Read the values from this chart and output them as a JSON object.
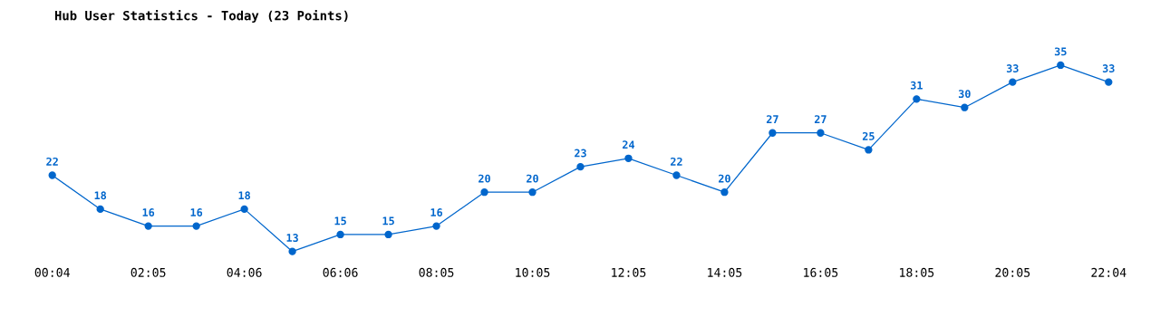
{
  "chart_data": {
    "type": "line",
    "title": "Hub User Statistics - Today (23 Points)",
    "categories": [
      "00:04",
      null,
      "02:05",
      null,
      "04:06",
      null,
      "06:06",
      null,
      "08:05",
      null,
      "10:05",
      null,
      "12:05",
      null,
      "14:05",
      null,
      "16:05",
      null,
      "18:05",
      null,
      "20:05",
      null,
      "22:04"
    ],
    "series": [
      {
        "color": "#0066cc",
        "values": [
          22,
          18,
          16,
          16,
          18,
          13,
          15,
          15,
          16,
          20,
          20,
          23,
          24,
          22,
          20,
          27,
          27,
          25,
          31,
          30,
          33,
          35,
          33
        ]
      }
    ],
    "data_labels": true,
    "marker": "circle",
    "line_style": "solid",
    "grid": false,
    "legend": false,
    "tick_labels": "x"
  }
}
